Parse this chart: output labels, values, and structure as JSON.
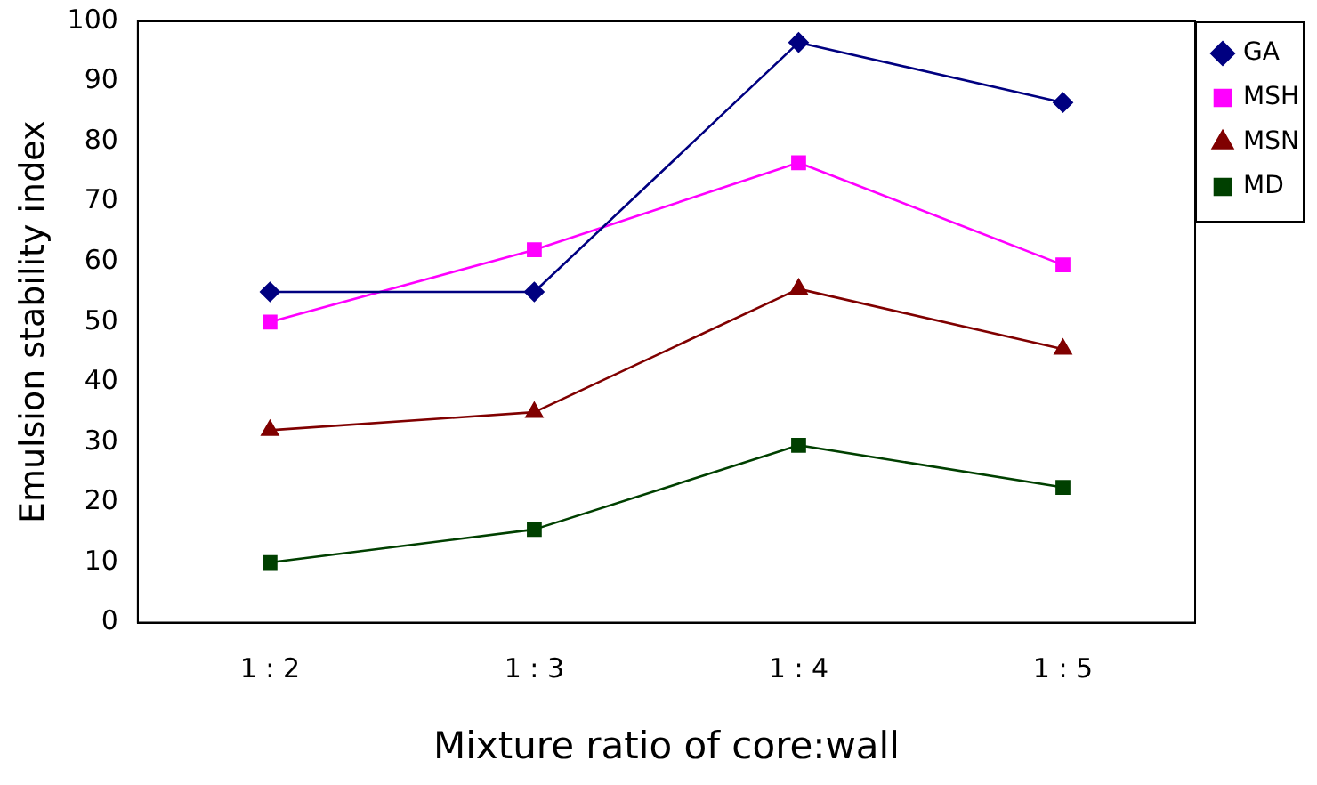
{
  "chart_data": {
    "type": "line",
    "xlabel": "Mixture ratio of core:wall",
    "ylabel": "Emulsion stability index",
    "categories": [
      "1 : 2",
      "1 : 3",
      "1 : 4",
      "1 : 5"
    ],
    "ylim": [
      0,
      100
    ],
    "yticks": [
      0,
      10,
      20,
      30,
      40,
      50,
      60,
      70,
      80,
      90,
      100
    ],
    "grid": false,
    "legend": "top right",
    "line_style": "solid",
    "series": [
      {
        "name": "GA",
        "color": "#000080",
        "marker": "diamond",
        "values": [
          55,
          55,
          96.5,
          86.5
        ]
      },
      {
        "name": "MSH",
        "color": "#ff00ff",
        "marker": "square",
        "values": [
          50,
          62,
          76.5,
          59.5
        ]
      },
      {
        "name": "MSN",
        "color": "#800000",
        "marker": "triangle",
        "values": [
          32,
          35,
          55.5,
          45.5
        ]
      },
      {
        "name": "MD",
        "color": "#004000",
        "marker": "square",
        "values": [
          10,
          15.5,
          29.5,
          22.5
        ]
      }
    ]
  }
}
